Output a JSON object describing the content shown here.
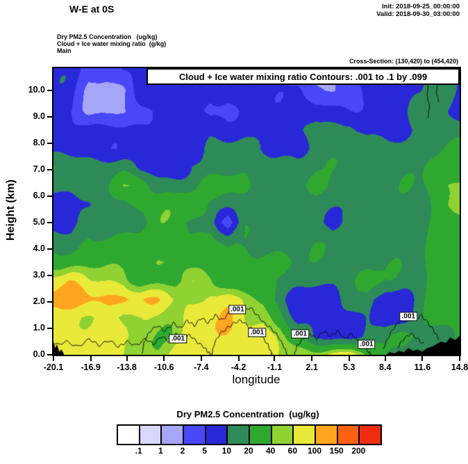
{
  "header": {
    "title": "W-E at 0S",
    "init": "Init: 2018-09-25_00:00:00",
    "valid": "Valid: 2018-09-30_03:00:00",
    "field1": "Dry PM2.5 Concentration   (ug/kg)",
    "field2": "Cloud + Ice water mixing ratio  (g/kg)",
    "field3": "Main",
    "cross_section": "Cross-Section: (130,420) to (454,420)"
  },
  "plot": {
    "banner": "Cloud + Ice water mixing ratio Contours: .001 to .1 by .099",
    "xlabel": "longitude",
    "ylabel": "Height (km)",
    "contour_label": ".001"
  },
  "colorbar": {
    "title": "Dry PM2.5 Concentration  (ug/kg)",
    "labels": [
      ".1",
      "1",
      "2",
      "5",
      "10",
      "20",
      "40",
      "60",
      "100",
      "150",
      "200"
    ],
    "colors": [
      "#ffffff",
      "#d8d8ff",
      "#a6a6f7",
      "#4848f8",
      "#2828d8",
      "#2e8b57",
      "#2fa82f",
      "#8fd232",
      "#e9e93a",
      "#ffa51e",
      "#ff6014",
      "#ef2c10"
    ]
  },
  "chart_data": {
    "type": "heatmap",
    "title": "W-E at 0S cross-section of Dry PM2.5 Concentration with Cloud + Ice water mixing ratio contours",
    "xlabel": "longitude",
    "ylabel": "Height (km)",
    "xlim": [
      -20.1,
      14.8
    ],
    "ylim": [
      0,
      10.84
    ],
    "x_tick_labels": [
      "-20.1",
      "-16.9",
      "-13.8",
      "-10.6",
      "-7.4",
      "-4.2",
      "-1.1",
      "2.1",
      "5.3",
      "8.4",
      "11.6",
      "14.8"
    ],
    "y_tick_values": [
      0,
      1,
      2,
      3,
      4,
      5,
      6,
      7,
      8,
      9,
      10
    ],
    "levels_ug_per_kg": [
      0.1,
      1,
      2,
      5,
      10,
      20,
      40,
      60,
      100,
      150,
      200
    ],
    "level_colors": [
      "#ffffff",
      "#d8d8ff",
      "#a6a6f7",
      "#4848f8",
      "#2828d8",
      "#2e8b57",
      "#2fa82f",
      "#8fd232",
      "#e9e93a",
      "#ffa51e",
      "#ff6014",
      "#ef2c10"
    ],
    "cloud_contour_value": 0.001,
    "grid": {
      "lon": [
        -20.1,
        -18.6,
        -17.1,
        -15.6,
        -14.1,
        -12.6,
        -11.1,
        -9.6,
        -8.1,
        -6.6,
        -5.1,
        -3.6,
        -2.1,
        -0.6,
        0.9,
        2.4,
        3.9,
        5.4,
        6.9,
        8.4,
        9.9,
        11.4,
        12.9,
        14.8
      ],
      "height_km": [
        0,
        0.7,
        1.4,
        2.1,
        2.8,
        3.5,
        4.2,
        5.0,
        5.7,
        6.4,
        7.1,
        7.8,
        8.5,
        9.2,
        10.0,
        10.8
      ],
      "pm25": [
        [
          80,
          80,
          80,
          80,
          80,
          50,
          50,
          80,
          80,
          80,
          80,
          80,
          80,
          50,
          50,
          50,
          80,
          80,
          30,
          15,
          15,
          15,
          15,
          15
        ],
        [
          80,
          80,
          80,
          80,
          80,
          50,
          50,
          50,
          80,
          80,
          80,
          80,
          80,
          50,
          15,
          7,
          7,
          7,
          15,
          15,
          30,
          15,
          15,
          30
        ],
        [
          80,
          80,
          80,
          80,
          50,
          50,
          50,
          50,
          80,
          80,
          80,
          50,
          50,
          30,
          7,
          7,
          7,
          7,
          15,
          7,
          7,
          15,
          30,
          30
        ],
        [
          120,
          120,
          120,
          120,
          120,
          80,
          80,
          50,
          50,
          80,
          80,
          50,
          30,
          15,
          7,
          7,
          7,
          15,
          15,
          7,
          7,
          15,
          30,
          30
        ],
        [
          80,
          80,
          50,
          50,
          50,
          30,
          30,
          30,
          50,
          50,
          30,
          30,
          30,
          15,
          15,
          15,
          15,
          15,
          30,
          15,
          15,
          15,
          30,
          30
        ],
        [
          30,
          30,
          30,
          30,
          30,
          30,
          50,
          50,
          30,
          30,
          30,
          30,
          30,
          30,
          15,
          15,
          15,
          15,
          15,
          15,
          15,
          15,
          30,
          30
        ],
        [
          15,
          15,
          30,
          30,
          30,
          30,
          30,
          30,
          30,
          30,
          15,
          15,
          15,
          15,
          15,
          15,
          15,
          15,
          15,
          15,
          15,
          15,
          30,
          30
        ],
        [
          7,
          7,
          15,
          15,
          15,
          15,
          30,
          30,
          15,
          15,
          3,
          15,
          15,
          15,
          15,
          15,
          7,
          15,
          15,
          15,
          15,
          15,
          30,
          30
        ],
        [
          7,
          7,
          7,
          15,
          15,
          30,
          30,
          30,
          30,
          15,
          15,
          15,
          15,
          15,
          15,
          15,
          15,
          15,
          15,
          15,
          15,
          15,
          30,
          50
        ],
        [
          15,
          15,
          15,
          15,
          30,
          30,
          15,
          15,
          15,
          30,
          30,
          30,
          15,
          15,
          15,
          30,
          15,
          15,
          15,
          15,
          15,
          15,
          30,
          50
        ],
        [
          15,
          15,
          15,
          15,
          15,
          7,
          7,
          7,
          15,
          15,
          15,
          15,
          15,
          15,
          15,
          15,
          15,
          15,
          15,
          15,
          15,
          15,
          30,
          30
        ],
        [
          7,
          7,
          7,
          7,
          7,
          7,
          7,
          7,
          7,
          15,
          15,
          15,
          7,
          7,
          7,
          15,
          15,
          15,
          15,
          15,
          15,
          15,
          15,
          30
        ],
        [
          7,
          7,
          7,
          7,
          7,
          7,
          7,
          7,
          7,
          7,
          7,
          7,
          7,
          7,
          7,
          15,
          15,
          15,
          7,
          7,
          7,
          15,
          15,
          15
        ],
        [
          7,
          7,
          1.5,
          1.5,
          1.5,
          3,
          7,
          7,
          7,
          3,
          3,
          7,
          7,
          7,
          7,
          7,
          7,
          7,
          7,
          7,
          7,
          15,
          15,
          7
        ],
        [
          7,
          7,
          1.5,
          1.5,
          1.5,
          7,
          7,
          7,
          7,
          7,
          7,
          7,
          7,
          7,
          7,
          3,
          1.5,
          3,
          7,
          7,
          7,
          7,
          15,
          7
        ],
        [
          7,
          7,
          3,
          3,
          7,
          7,
          7,
          7,
          7,
          7,
          7,
          7,
          7,
          7,
          3,
          1.5,
          1.5,
          3,
          7,
          7,
          7,
          7,
          7,
          7
        ]
      ]
    },
    "terrain_right": [
      [
        8.55,
        0.02
      ],
      [
        8.8,
        0.1
      ],
      [
        9.2,
        0.05
      ],
      [
        9.6,
        0.15
      ],
      [
        10.0,
        0.1
      ],
      [
        10.4,
        0.25
      ],
      [
        10.8,
        0.15
      ],
      [
        11.2,
        0.2
      ],
      [
        11.6,
        0.12
      ],
      [
        12.0,
        0.25
      ],
      [
        12.4,
        0.3
      ],
      [
        12.8,
        0.4
      ],
      [
        13.2,
        0.5
      ],
      [
        13.6,
        0.45
      ],
      [
        14.0,
        0.65
      ],
      [
        14.4,
        0.55
      ],
      [
        14.8,
        0.72
      ]
    ],
    "terrain_left": [
      [
        -20.1,
        0.5
      ],
      [
        -19.95,
        0.25
      ],
      [
        -19.8,
        0.4
      ],
      [
        -19.6,
        0.12
      ],
      [
        -19.4,
        0.2
      ],
      [
        -19.2,
        0.02
      ]
    ],
    "cloud_contours": [
      [
        [
          -20.1,
          0.35
        ],
        [
          -19,
          0.5
        ],
        [
          -18,
          0.3
        ],
        [
          -17,
          0.6
        ],
        [
          -16.2,
          0.35
        ],
        [
          -15.3,
          0.55
        ],
        [
          -14.5,
          0.3
        ],
        [
          -13.8,
          0.5
        ],
        [
          -13,
          0.35
        ],
        [
          -12.2,
          0.6
        ],
        [
          -11.5,
          0.4
        ],
        [
          -10.8,
          0.7
        ],
        [
          -10.2,
          0.5
        ],
        [
          -9.6,
          0.8
        ],
        [
          -9,
          0.55
        ],
        [
          -8.4,
          0.75
        ],
        [
          -7.8,
          0.5
        ],
        [
          -7.2,
          0.3
        ],
        [
          -6.8,
          0.1
        ],
        [
          -6.5,
          0
        ]
      ],
      [
        [
          -12.5,
          0
        ],
        [
          -12.3,
          0.5
        ],
        [
          -11.8,
          0.9
        ],
        [
          -11.2,
          1.1
        ],
        [
          -10.5,
          0.9
        ],
        [
          -9.8,
          1.2
        ],
        [
          -9.2,
          1.0
        ],
        [
          -8.6,
          1.3
        ],
        [
          -8,
          1.1
        ],
        [
          -7.4,
          1.4
        ],
        [
          -6.8,
          1.2
        ],
        [
          -6.2,
          1.5
        ],
        [
          -5.6,
          1.3
        ],
        [
          -5,
          1.6
        ],
        [
          -4.4,
          1.8
        ],
        [
          -3.8,
          1.6
        ],
        [
          -3.2,
          1.8
        ],
        [
          -2.6,
          1.5
        ],
        [
          -2,
          1.2
        ],
        [
          -1.4,
          1.0
        ],
        [
          -0.8,
          0.7
        ],
        [
          -0.3,
          0.3
        ],
        [
          0,
          0
        ]
      ],
      [
        [
          -6.5,
          0
        ],
        [
          -6.3,
          0.4
        ],
        [
          -5.8,
          0.8
        ],
        [
          -5.2,
          1.0
        ],
        [
          -4.6,
          1.2
        ],
        [
          -4,
          1.3
        ],
        [
          -3.4,
          1.1
        ],
        [
          -2.8,
          0.9
        ],
        [
          -2.2,
          0.7
        ],
        [
          -1.7,
          0.4
        ],
        [
          -1.4,
          0.1
        ],
        [
          -1.3,
          0
        ]
      ],
      [
        [
          0.6,
          0
        ],
        [
          0.8,
          0.3
        ],
        [
          1.3,
          0.6
        ],
        [
          1.9,
          0.8
        ],
        [
          2.5,
          0.6
        ],
        [
          3.1,
          0.9
        ],
        [
          3.7,
          0.7
        ],
        [
          4.3,
          0.9
        ],
        [
          4.9,
          0.6
        ],
        [
          5.5,
          0.8
        ],
        [
          6.1,
          0.5
        ],
        [
          6.6,
          0.3
        ],
        [
          7,
          0.1
        ],
        [
          7.2,
          0
        ]
      ],
      [
        [
          8.2,
          0.2
        ],
        [
          8.6,
          0.6
        ],
        [
          9.1,
          1.0
        ],
        [
          9.7,
          1.3
        ],
        [
          10.3,
          1.5
        ],
        [
          10.9,
          1.3
        ],
        [
          11.5,
          1.5
        ],
        [
          12.1,
          1.2
        ],
        [
          12.6,
          0.9
        ],
        [
          13,
          0.6
        ]
      ],
      [
        [
          9.5,
          0.3
        ],
        [
          10,
          0.6
        ],
        [
          10.6,
          0.8
        ],
        [
          11.2,
          0.6
        ],
        [
          11.7,
          0.4
        ]
      ],
      [
        [
          12.0,
          10.7
        ],
        [
          12.1,
          10.2
        ],
        [
          12.0,
          9.8
        ],
        [
          12.2,
          9.4
        ],
        [
          12.1,
          9.0
        ]
      ],
      [
        [
          12.8,
          10.7
        ],
        [
          12.9,
          10.3
        ],
        [
          12.8,
          9.9
        ],
        [
          13.0,
          9.6
        ]
      ]
    ],
    "cloud_contour_labels": [
      {
        "lon": -9.4,
        "km": 0.6
      },
      {
        "lon": -4.3,
        "km": 1.7
      },
      {
        "lon": -2.6,
        "km": 0.85
      },
      {
        "lon": 1.1,
        "km": 0.8
      },
      {
        "lon": 6.8,
        "km": 0.4
      },
      {
        "lon": 10.4,
        "km": 1.45
      }
    ]
  }
}
